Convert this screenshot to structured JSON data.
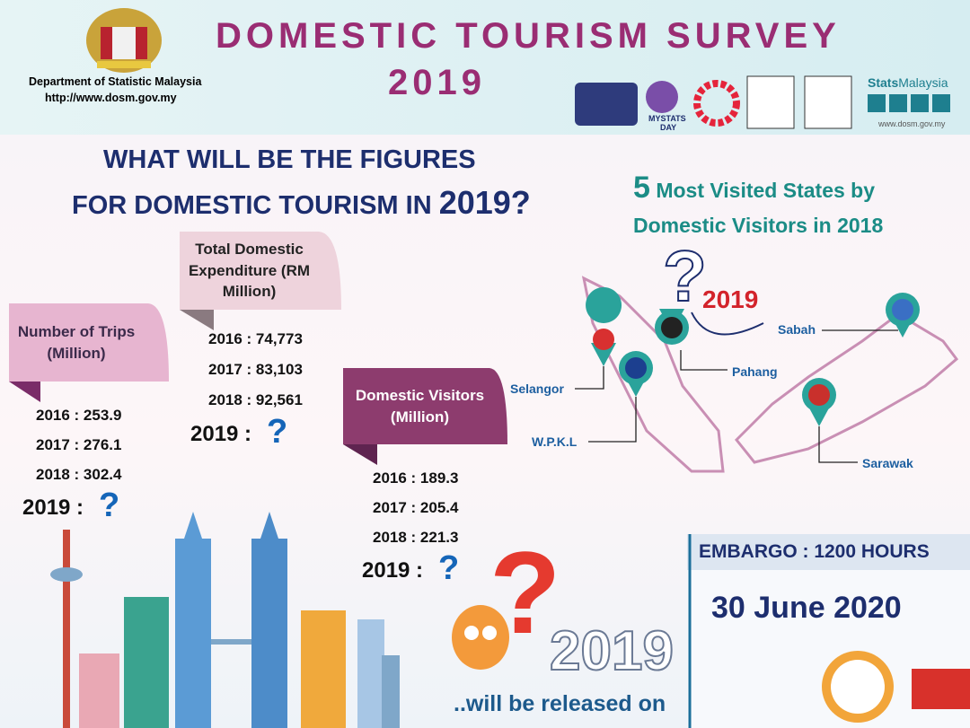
{
  "header": {
    "department": "Department of Statistic Malaysia",
    "url": "http://www.dosm.gov.my",
    "title": "DOMESTIC TOURISM SURVEY",
    "year": "2019",
    "mystats": "MYSTATS",
    "mystats_day": "DAY",
    "brand_bold": "Stats",
    "brand_light": "Malaysia",
    "brand_url": "www.dosm.gov.my"
  },
  "question": {
    "line1": "WHAT WILL BE THE FIGURES",
    "line2": "FOR DOMESTIC TOURISM IN",
    "line2_year": "2019?"
  },
  "trips": {
    "title": "Number of Trips (Million)",
    "rows": [
      "2016  :  253.9",
      "2017  :  276.1",
      "2018  :  302.4"
    ],
    "pending": "2019 :",
    "mark": "?"
  },
  "expenditure": {
    "title": "Total Domestic Expenditure (RM Million)",
    "rows": [
      "2016 :  74,773",
      "2017 :  83,103",
      "2018 :  92,561"
    ],
    "pending": "2019 :",
    "mark": "?"
  },
  "visitors": {
    "title": "Domestic Visitors (Million)",
    "rows": [
      "2016  :  189.3",
      "2017  :  205.4",
      "2018  :  221.3"
    ],
    "pending": "2019 :",
    "mark": "?"
  },
  "states": {
    "heading_num": "5",
    "heading_line1": "Most Visited States by",
    "heading_line2": "Domestic Visitors in 2018",
    "map_mark": "?",
    "map_year": "2019",
    "labels": [
      "Sabah",
      "Pahang",
      "Selangor",
      "W.P.K.L",
      "Sarawak"
    ]
  },
  "release": {
    "mark": "?",
    "year": "2019",
    "text": "..will be released on",
    "embargo": "EMBARGO : 1200 HOURS",
    "date": "30 June 2020"
  }
}
